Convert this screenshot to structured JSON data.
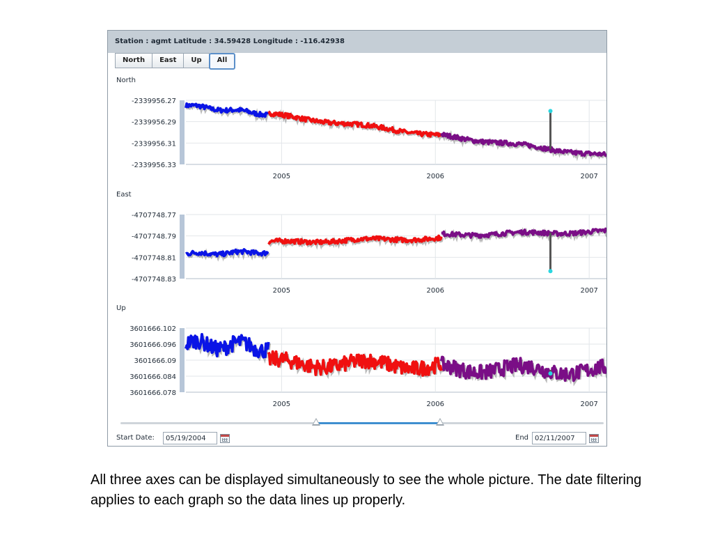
{
  "station": {
    "header": "Station : agmt Latitude : 34.59428 Longitude : -116.42938"
  },
  "tabs": [
    {
      "label": "North",
      "active": false
    },
    {
      "label": "East",
      "active": false
    },
    {
      "label": "Up",
      "active": false
    },
    {
      "label": "All",
      "active": true
    }
  ],
  "colors": {
    "seg2004": "#0a14e6",
    "seg2005": "#f01010",
    "seg2006": "#7a0e86",
    "outlier": "#2ad6e0",
    "grid": "#e2e6ea",
    "axis": "#b7c6d8"
  },
  "charts": [
    {
      "label": "North",
      "yticks": [
        "-2339956.27",
        "-2339956.29",
        "-2339956.31",
        "-2339956.33"
      ]
    },
    {
      "label": "East",
      "yticks": [
        "-4707748.77",
        "-4707748.79",
        "-4707748.81",
        "-4707748.83"
      ]
    },
    {
      "label": "Up",
      "yticks": [
        "3601666.102",
        "3601666.096",
        "3601666.09",
        "3601666.084",
        "3601666.078"
      ]
    }
  ],
  "chart_data": [
    {
      "type": "scatter",
      "title": "North",
      "x_range": [
        "2004-05-19",
        "2007-02-11"
      ],
      "xticks": [
        "2005",
        "2006",
        "2007"
      ],
      "ylim": [
        -2339956.33,
        -2339956.27
      ],
      "series": [
        {
          "period": "2004-05-19 to 2004-12-01",
          "color": "#0a14e6",
          "start_value": -2339956.275,
          "end_value": -2339956.283
        },
        {
          "period": "2004-12-01 to 2006-01-15",
          "color": "#f01010",
          "start_value": -2339956.283,
          "end_value": -2339956.303
        },
        {
          "period": "2006-01-15 to 2007-02-11",
          "color": "#7a0e86",
          "start_value": -2339956.303,
          "end_value": -2339956.322
        }
      ],
      "outlier": {
        "date": "2006-10-01",
        "value": -2339956.28
      }
    },
    {
      "type": "scatter",
      "title": "East",
      "x_range": [
        "2004-05-19",
        "2007-02-11"
      ],
      "xticks": [
        "2005",
        "2006",
        "2007"
      ],
      "ylim": [
        -4707748.83,
        -4707748.77
      ],
      "series": [
        {
          "period": "2004-05-19 to 2004-12-01",
          "color": "#0a14e6",
          "start_value": -4707748.807,
          "end_value": -4707748.805
        },
        {
          "period": "2004-12-01 to 2006-01-15",
          "color": "#f01010",
          "start_value": -4707748.796,
          "end_value": -4707748.792
        },
        {
          "period": "2006-01-15 to 2007-02-11",
          "color": "#7a0e86",
          "start_value": -4707748.789,
          "end_value": -4707748.786
        }
      ],
      "outlier": {
        "date": "2006-10-01",
        "value": -4707748.823
      }
    },
    {
      "type": "scatter",
      "title": "Up",
      "x_range": [
        "2004-05-19",
        "2007-02-11"
      ],
      "xticks": [
        "2005",
        "2006",
        "2007"
      ],
      "ylim": [
        3601666.078,
        3601666.102
      ],
      "series": [
        {
          "period": "2004-05-19 to 2004-12-01",
          "color": "#0a14e6",
          "start_value": 3601666.096,
          "end_value": 3601666.095
        },
        {
          "period": "2004-12-01 to 2006-01-15",
          "color": "#f01010",
          "start_value": 3601666.089,
          "end_value": 3601666.088
        },
        {
          "period": "2006-01-15 to 2007-02-11",
          "color": "#7a0e86",
          "start_value": 3601666.087,
          "end_value": 3601666.086
        }
      ],
      "outlier": {
        "date": "2006-10-01",
        "value": 3601666.085
      }
    }
  ],
  "slider": {
    "start_fraction": 0.405,
    "end_fraction": 0.662
  },
  "start_date": {
    "label": "Start Date:",
    "value": "05/19/2004"
  },
  "end_date": {
    "label": "End",
    "value": "02/11/2007"
  },
  "caption": "All three axes can be displayed simultaneously to see the whole picture.  The date filtering applies to each graph so the data lines up properly."
}
